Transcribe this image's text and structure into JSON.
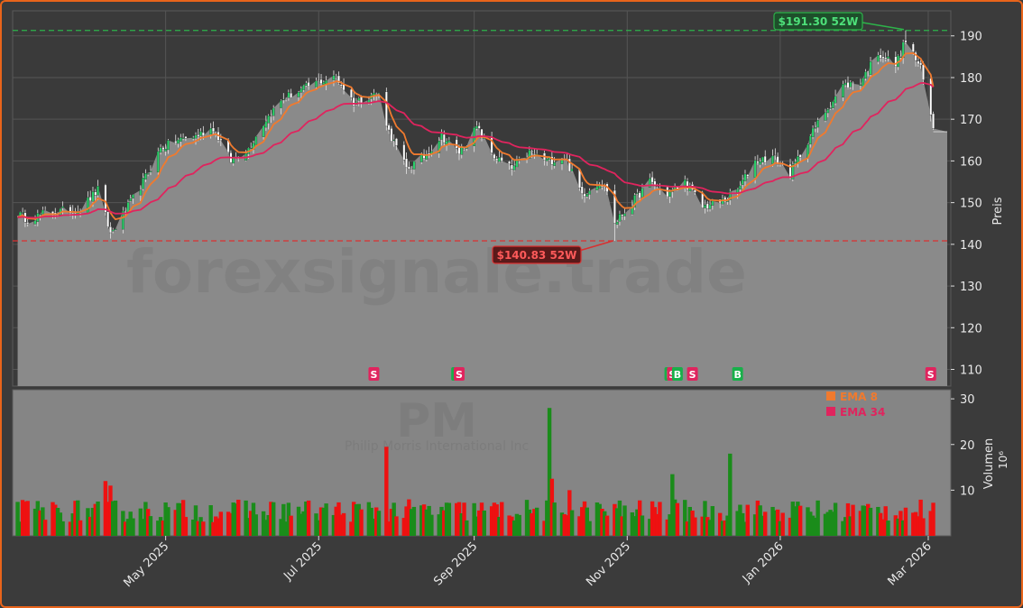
{
  "chart_data": [
    {
      "type": "candlestick",
      "ylabel": "Preis",
      "ylim": [
        106,
        196
      ],
      "yticks": [
        110,
        120,
        130,
        140,
        150,
        160,
        170,
        180,
        190
      ],
      "xticks": [
        "May 2025",
        "Jul 2025",
        "Sep 2025",
        "Nov 2025",
        "Jan 2026",
        "Mar 2026"
      ],
      "x_start": "2025-03-01",
      "x_end": "2026-03-10",
      "watermark": "forexsignale.trade",
      "grid": true,
      "high_52w": {
        "value": 191.3,
        "label": "$191.30 52W",
        "date": "2026-02-20"
      },
      "low_52w": {
        "value": 140.83,
        "label": "$140.83 52W",
        "date": "2025-10-27"
      },
      "close_anchors": [
        [
          "2025-03-01",
          148
        ],
        [
          "2025-03-07",
          146
        ],
        [
          "2025-03-14",
          147.5
        ],
        [
          "2025-03-21",
          148
        ],
        [
          "2025-03-28",
          148.5
        ],
        [
          "2025-04-04",
          153
        ],
        [
          "2025-04-09",
          142.5
        ],
        [
          "2025-04-15",
          148
        ],
        [
          "2025-04-22",
          155
        ],
        [
          "2025-04-29",
          163
        ],
        [
          "2025-05-06",
          165
        ],
        [
          "2025-05-13",
          166
        ],
        [
          "2025-05-20",
          168
        ],
        [
          "2025-05-27",
          160
        ],
        [
          "2025-06-03",
          163
        ],
        [
          "2025-06-10",
          170
        ],
        [
          "2025-06-17",
          175
        ],
        [
          "2025-06-24",
          177
        ],
        [
          "2025-07-01",
          179
        ],
        [
          "2025-07-08",
          180
        ],
        [
          "2025-07-15",
          174
        ],
        [
          "2025-07-22",
          176
        ],
        [
          "2025-07-25",
          176
        ],
        [
          "2025-07-29",
          167
        ],
        [
          "2025-08-05",
          158
        ],
        [
          "2025-08-12",
          161
        ],
        [
          "2025-08-19",
          166
        ],
        [
          "2025-08-26",
          162
        ],
        [
          "2025-09-02",
          168
        ],
        [
          "2025-09-09",
          161
        ],
        [
          "2025-09-16",
          158
        ],
        [
          "2025-09-23",
          162
        ],
        [
          "2025-09-30",
          160
        ],
        [
          "2025-10-07",
          161
        ],
        [
          "2025-10-14",
          152
        ],
        [
          "2025-10-21",
          155
        ],
        [
          "2025-10-24",
          153
        ],
        [
          "2025-10-27",
          145
        ],
        [
          "2025-11-03",
          150
        ],
        [
          "2025-11-10",
          155
        ],
        [
          "2025-11-17",
          152
        ],
        [
          "2025-11-24",
          155
        ],
        [
          "2025-12-01",
          149
        ],
        [
          "2025-12-08",
          150
        ],
        [
          "2025-12-15",
          153
        ],
        [
          "2025-12-22",
          160
        ],
        [
          "2025-12-29",
          161
        ],
        [
          "2026-01-05",
          157
        ],
        [
          "2026-01-12",
          165
        ],
        [
          "2026-01-19",
          172
        ],
        [
          "2026-01-26",
          178
        ],
        [
          "2026-02-02",
          179
        ],
        [
          "2026-02-09",
          186
        ],
        [
          "2026-02-16",
          183
        ],
        [
          "2026-02-20",
          189
        ],
        [
          "2026-02-26",
          182
        ],
        [
          "2026-03-03",
          168
        ]
      ],
      "last_price_fill": 167,
      "signals": [
        {
          "label": "S",
          "date": "2025-07-23",
          "type": "sell"
        },
        {
          "label": "B",
          "date": "2025-08-25",
          "type": "buy"
        },
        {
          "label": "S",
          "date": "2025-08-26",
          "type": "sell"
        },
        {
          "label": "B",
          "date": "2025-11-18",
          "type": "buy"
        },
        {
          "label": "S",
          "date": "2025-11-19",
          "type": "sell"
        },
        {
          "label": "B",
          "date": "2025-11-21",
          "type": "buy"
        },
        {
          "label": "S",
          "date": "2025-11-27",
          "type": "sell"
        },
        {
          "label": "B",
          "date": "2025-12-15",
          "type": "buy"
        },
        {
          "label": "S",
          "date": "2026-03-02",
          "type": "sell"
        }
      ],
      "series": [
        {
          "name": "EMA 8",
          "span": 8,
          "color": "#f07a2e"
        },
        {
          "name": "EMA 34",
          "span": 34,
          "color": "#e0245e"
        }
      ]
    },
    {
      "type": "bar",
      "ylabel": "Volumen",
      "yunit": "10⁶",
      "ylim": [
        0,
        32
      ],
      "yticks": [
        10,
        20,
        30
      ],
      "ticker": "PM",
      "company": "Philip Morris International Inc",
      "legend": [
        {
          "label": "EMA 8",
          "color": "#f07a2e"
        },
        {
          "label": "EMA 34",
          "color": "#e0245e"
        }
      ],
      "spikes": [
        [
          "2025-07-28",
          19.5
        ],
        [
          "2025-10-01",
          28
        ],
        [
          "2025-10-02",
          12.5
        ],
        [
          "2025-10-09",
          10
        ],
        [
          "2025-11-19",
          13.5
        ],
        [
          "2025-12-12",
          18
        ],
        [
          "2025-04-07",
          12
        ],
        [
          "2025-04-09",
          11
        ]
      ],
      "up_color": "#1a8c1a",
      "down_color": "#ee1111"
    }
  ]
}
